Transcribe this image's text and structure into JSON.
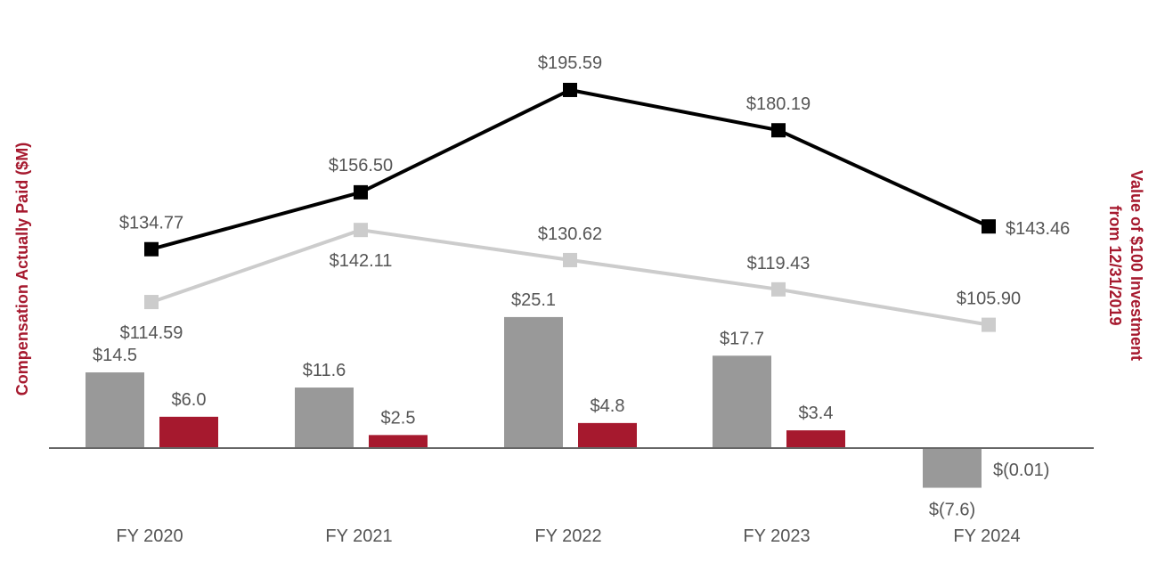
{
  "chart_data": {
    "type": "bar+line",
    "categories": [
      "FY 2020",
      "FY 2021",
      "FY 2022",
      "FY 2023",
      "FY 2024"
    ],
    "left_axis_title": "Compensation Actually Paid ($M)",
    "right_axis_title_line1": "Value of $100 Investment",
    "right_axis_title_line2": "from 12/31/2019",
    "colors": {
      "bar_gray": "#999999",
      "bar_red": "#a6192e",
      "line_black": "#000000",
      "line_gray": "#cccccc",
      "axis_title": "#a6192e"
    },
    "bar_series": [
      {
        "name": "Gray bars",
        "values": [
          14.5,
          11.6,
          25.1,
          17.7,
          -7.6
        ],
        "labels": [
          "$14.5",
          "$11.6",
          "$25.1",
          "$17.7",
          "$(7.6)"
        ]
      },
      {
        "name": "Red bars",
        "values": [
          6.0,
          2.5,
          4.8,
          3.4,
          -0.01
        ],
        "labels": [
          "$6.0",
          "$2.5",
          "$4.8",
          "$3.4",
          "$(0.01)"
        ]
      }
    ],
    "line_series": [
      {
        "name": "Black line",
        "values": [
          134.77,
          156.5,
          195.59,
          180.19,
          143.46
        ],
        "labels": [
          "$134.77",
          "$156.50",
          "$195.59",
          "$180.19",
          "$143.46"
        ]
      },
      {
        "name": "Gray line",
        "values": [
          114.59,
          142.11,
          130.62,
          119.43,
          105.9
        ],
        "labels": [
          "$114.59",
          "$142.11",
          "$130.62",
          "$119.43",
          "$105.90"
        ]
      }
    ]
  }
}
